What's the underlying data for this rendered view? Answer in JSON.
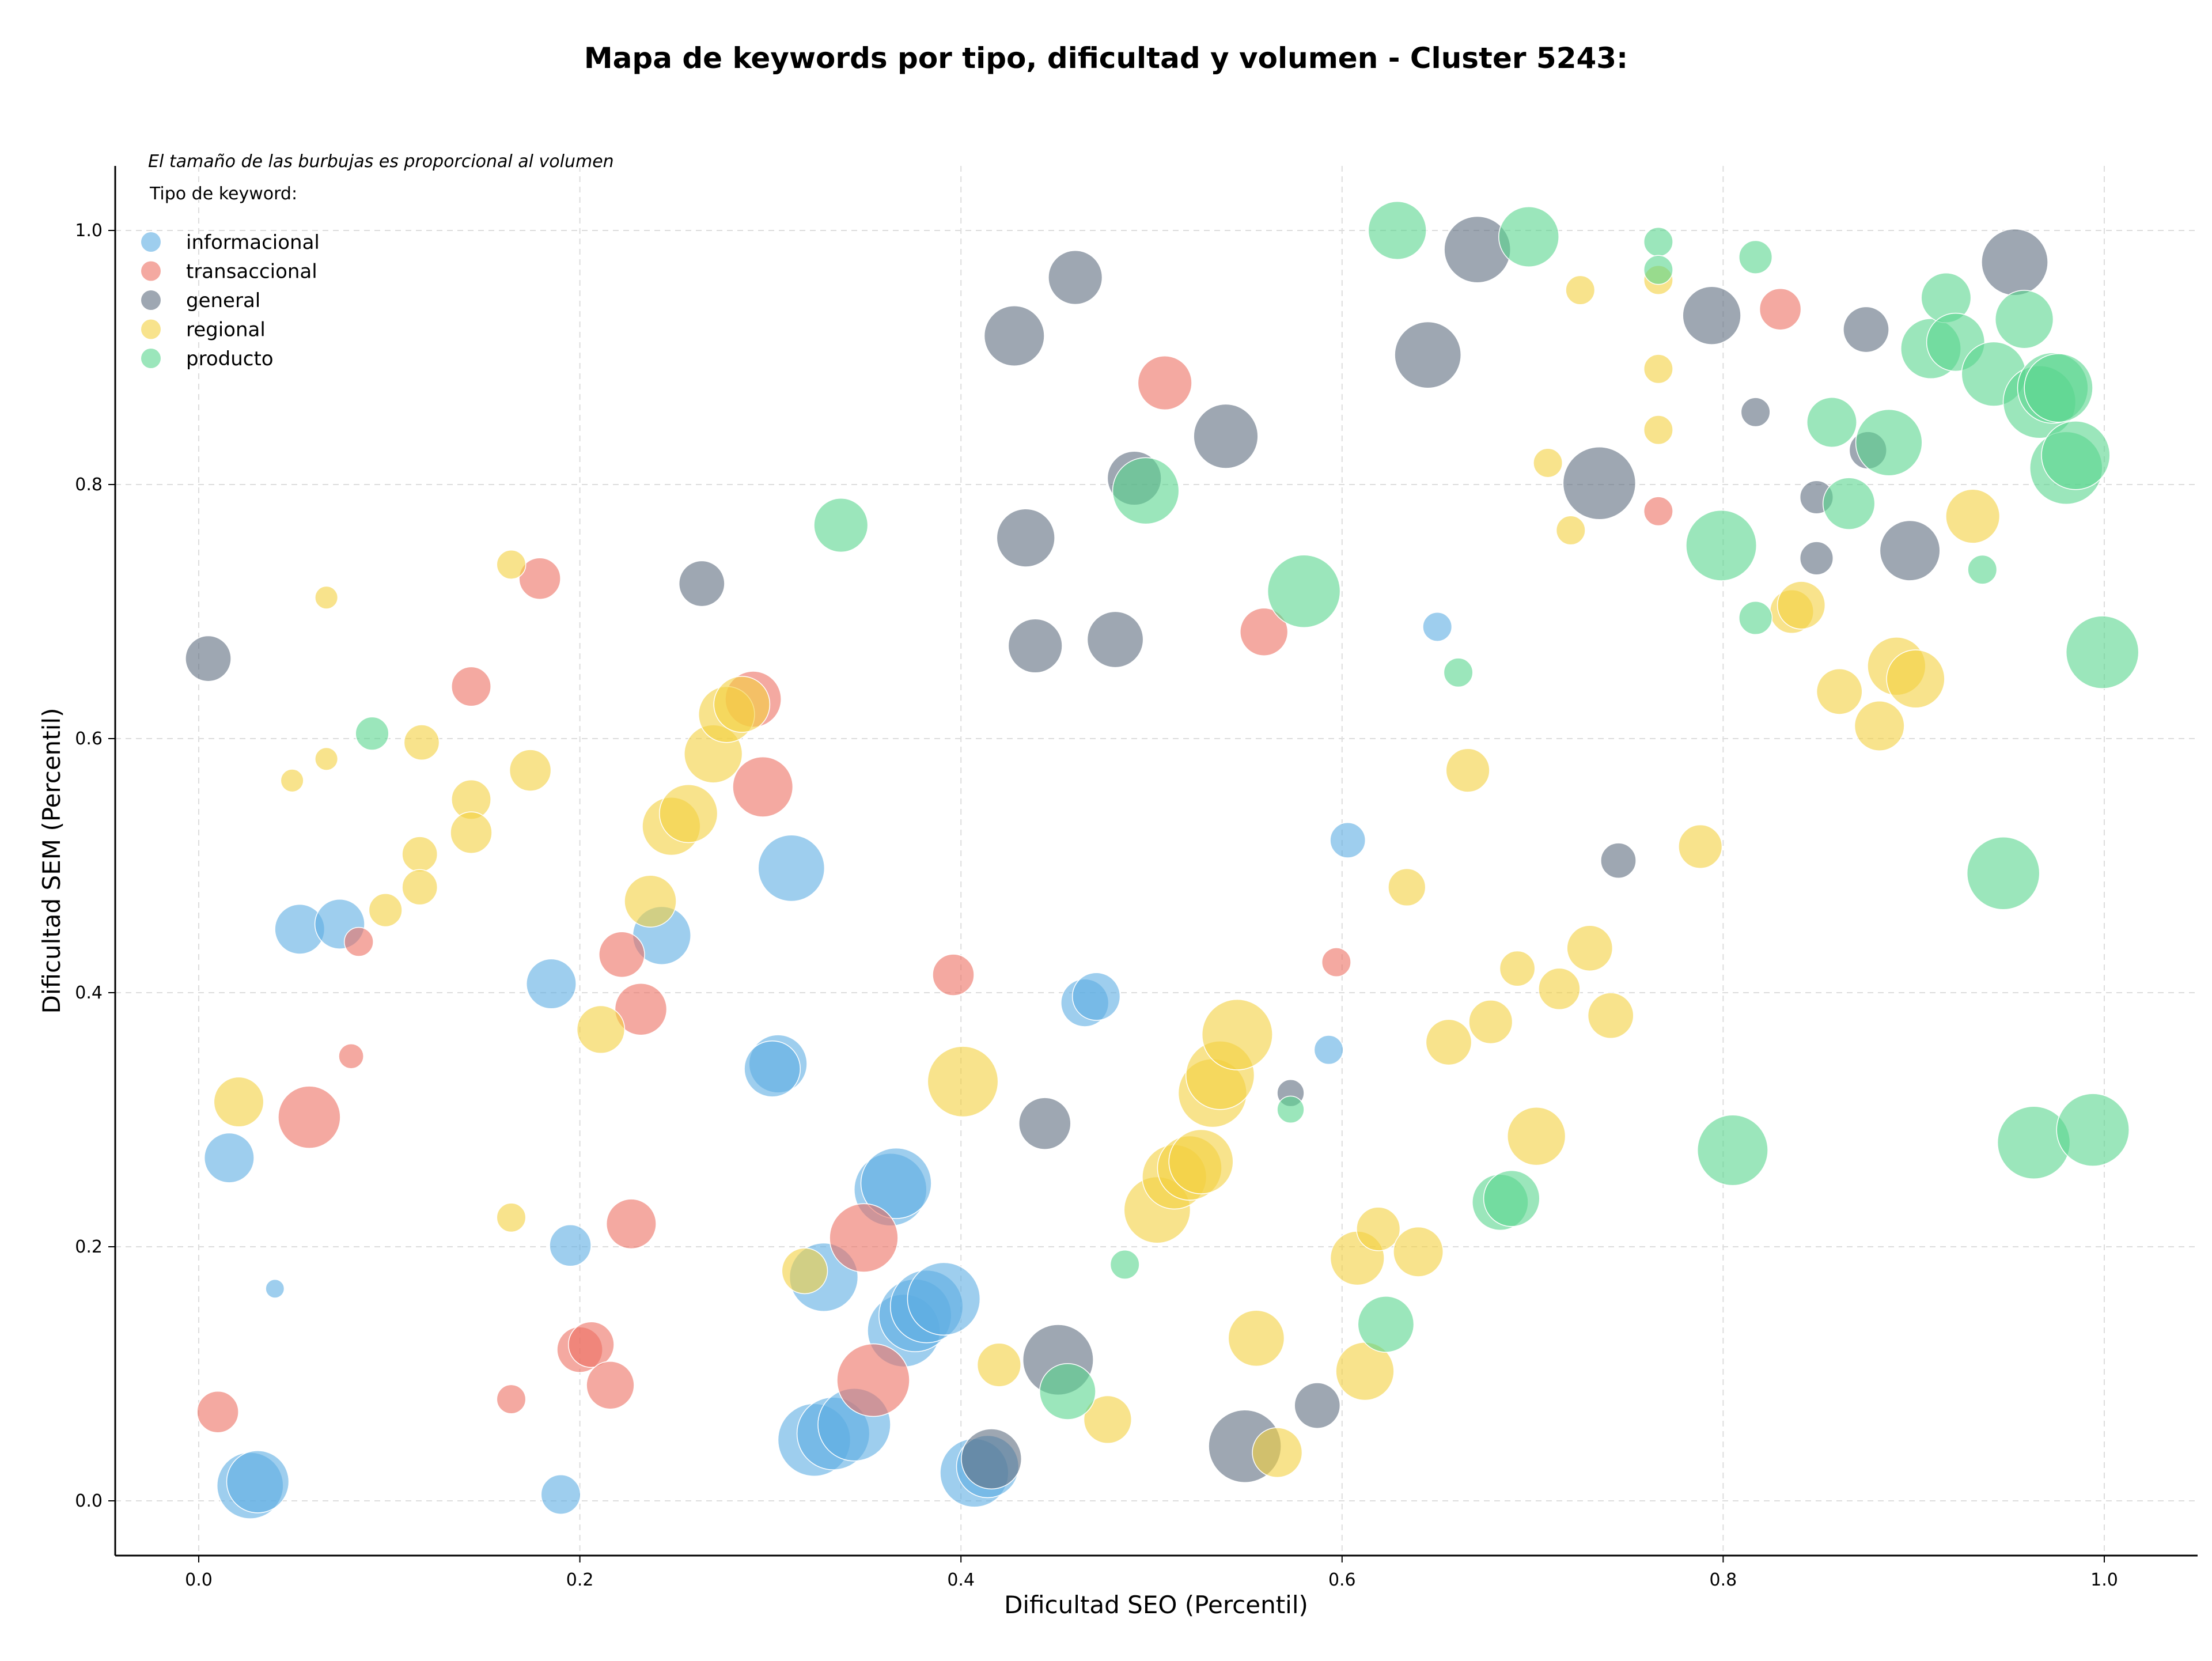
{
  "chart_data": {
    "type": "scatter",
    "title": "Mapa de keywords por tipo, dificultad y volumen - Cluster 5243:",
    "xlabel": "Dificultad SEO (Percentil)",
    "ylabel": "Dificultad SEM (Percentil)",
    "xlim": [
      -0.045,
      1.05
    ],
    "ylim": [
      -0.045,
      1.05
    ],
    "xticks": [
      0.0,
      0.2,
      0.4,
      0.6,
      0.8,
      1.0
    ],
    "yticks": [
      0.0,
      0.2,
      0.4,
      0.6,
      0.8,
      1.0
    ],
    "xtick_labels": [
      "0.0",
      "0.2",
      "0.4",
      "0.6",
      "0.8",
      "1.0"
    ],
    "ytick_labels": [
      "0.0",
      "0.2",
      "0.4",
      "0.6",
      "0.8",
      "1.0"
    ],
    "grid": true,
    "note": "El tamaño de las burbujas es proporcional al volumen",
    "legend_title": "Tipo de keyword:",
    "legend_position": "top-left",
    "series": [
      {
        "name": "informacional",
        "color": "#5dade2",
        "points": [
          [
            0.053,
            0.45,
            2.4
          ],
          [
            0.074,
            0.454,
            2.4
          ],
          [
            0.016,
            0.27,
            2.4
          ],
          [
            0.04,
            0.167,
            0.9
          ],
          [
            0.027,
            0.012,
            3.2
          ],
          [
            0.031,
            0.015,
            3.0
          ],
          [
            0.185,
            0.407,
            2.4
          ],
          [
            0.195,
            0.201,
            2.0
          ],
          [
            0.19,
            0.005,
            1.9
          ],
          [
            0.243,
            0.445,
            2.8
          ],
          [
            0.311,
            0.498,
            3.2
          ],
          [
            0.304,
            0.344,
            2.8
          ],
          [
            0.301,
            0.34,
            2.7
          ],
          [
            0.328,
            0.176,
            3.3
          ],
          [
            0.323,
            0.048,
            3.5
          ],
          [
            0.333,
            0.053,
            3.5
          ],
          [
            0.344,
            0.06,
            3.5
          ],
          [
            0.363,
            0.245,
            3.5
          ],
          [
            0.366,
            0.25,
            3.4
          ],
          [
            0.37,
            0.134,
            3.5
          ],
          [
            0.376,
            0.146,
            3.5
          ],
          [
            0.382,
            0.153,
            3.5
          ],
          [
            0.391,
            0.159,
            3.5
          ],
          [
            0.407,
            0.022,
            3.3
          ],
          [
            0.414,
            0.027,
            3.0
          ],
          [
            0.465,
            0.392,
            2.3
          ],
          [
            0.471,
            0.397,
            2.3
          ],
          [
            0.593,
            0.355,
            1.4
          ],
          [
            0.603,
            0.52,
            1.7
          ],
          [
            0.65,
            0.688,
            1.4
          ]
        ]
      },
      {
        "name": "transaccional",
        "color": "#ec7063",
        "points": [
          [
            0.179,
            0.726,
            2.0
          ],
          [
            0.143,
            0.641,
            1.9
          ],
          [
            0.058,
            0.302,
            3.0
          ],
          [
            0.084,
            0.44,
            1.4
          ],
          [
            0.08,
            0.35,
            1.2
          ],
          [
            0.01,
            0.07,
            2.0
          ],
          [
            0.164,
            0.08,
            1.4
          ],
          [
            0.222,
            0.43,
            2.2
          ],
          [
            0.232,
            0.387,
            2.5
          ],
          [
            0.227,
            0.218,
            2.4
          ],
          [
            0.2,
            0.119,
            2.2
          ],
          [
            0.206,
            0.123,
            2.2
          ],
          [
            0.216,
            0.091,
            2.3
          ],
          [
            0.291,
            0.631,
            2.7
          ],
          [
            0.296,
            0.562,
            2.9
          ],
          [
            0.349,
            0.207,
            3.3
          ],
          [
            0.354,
            0.095,
            3.5
          ],
          [
            0.396,
            0.414,
            2.0
          ],
          [
            0.507,
            0.88,
            2.6
          ],
          [
            0.559,
            0.684,
            2.3
          ],
          [
            0.597,
            0.424,
            1.4
          ],
          [
            0.766,
            0.779,
            1.4
          ],
          [
            0.83,
            0.938,
            2.0
          ]
        ]
      },
      {
        "name": "general",
        "color": "#5d6d7e",
        "points": [
          [
            0.005,
            0.663,
            2.2
          ],
          [
            0.264,
            0.722,
            2.2
          ],
          [
            0.428,
            0.917,
            2.9
          ],
          [
            0.46,
            0.963,
            2.6
          ],
          [
            0.434,
            0.758,
            2.8
          ],
          [
            0.439,
            0.673,
            2.6
          ],
          [
            0.444,
            0.297,
            2.5
          ],
          [
            0.451,
            0.111,
            3.4
          ],
          [
            0.416,
            0.033,
            2.9
          ],
          [
            0.481,
            0.678,
            2.7
          ],
          [
            0.491,
            0.805,
            2.6
          ],
          [
            0.539,
            0.838,
            3.1
          ],
          [
            0.549,
            0.043,
            3.5
          ],
          [
            0.573,
            0.321,
            1.3
          ],
          [
            0.587,
            0.075,
            2.2
          ],
          [
            0.645,
            0.902,
            3.2
          ],
          [
            0.671,
            0.985,
            3.2
          ],
          [
            0.735,
            0.801,
            3.5
          ],
          [
            0.745,
            0.504,
            1.7
          ],
          [
            0.794,
            0.933,
            2.8
          ],
          [
            0.817,
            0.857,
            1.4
          ],
          [
            0.849,
            0.79,
            1.6
          ],
          [
            0.849,
            0.742,
            1.6
          ],
          [
            0.875,
            0.922,
            2.2
          ],
          [
            0.876,
            0.827,
            1.8
          ],
          [
            0.898,
            0.748,
            2.9
          ],
          [
            0.953,
            0.975,
            3.2
          ]
        ]
      },
      {
        "name": "regional",
        "color": "#f4d03f",
        "points": [
          [
            0.067,
            0.711,
            1.1
          ],
          [
            0.049,
            0.567,
            1.1
          ],
          [
            0.067,
            0.584,
            1.1
          ],
          [
            0.098,
            0.465,
            1.6
          ],
          [
            0.117,
            0.597,
            1.7
          ],
          [
            0.116,
            0.509,
            1.7
          ],
          [
            0.116,
            0.483,
            1.7
          ],
          [
            0.143,
            0.552,
            1.9
          ],
          [
            0.143,
            0.526,
            2.0
          ],
          [
            0.164,
            0.737,
            1.4
          ],
          [
            0.174,
            0.575,
            2.0
          ],
          [
            0.164,
            0.223,
            1.4
          ],
          [
            0.021,
            0.314,
            2.4
          ],
          [
            0.211,
            0.371,
            2.3
          ],
          [
            0.237,
            0.472,
            2.5
          ],
          [
            0.248,
            0.531,
            2.8
          ],
          [
            0.257,
            0.541,
            2.8
          ],
          [
            0.27,
            0.588,
            2.8
          ],
          [
            0.277,
            0.619,
            2.7
          ],
          [
            0.285,
            0.627,
            2.7
          ],
          [
            0.318,
            0.181,
            2.2
          ],
          [
            0.401,
            0.33,
            3.4
          ],
          [
            0.42,
            0.107,
            2.1
          ],
          [
            0.477,
            0.064,
            2.3
          ],
          [
            0.503,
            0.229,
            3.2
          ],
          [
            0.512,
            0.255,
            3.1
          ],
          [
            0.52,
            0.262,
            3.1
          ],
          [
            0.526,
            0.267,
            3.1
          ],
          [
            0.532,
            0.321,
            3.3
          ],
          [
            0.536,
            0.335,
            3.3
          ],
          [
            0.545,
            0.367,
            3.4
          ],
          [
            0.555,
            0.128,
            2.7
          ],
          [
            0.566,
            0.038,
            2.4
          ],
          [
            0.608,
            0.191,
            2.6
          ],
          [
            0.612,
            0.102,
            2.8
          ],
          [
            0.619,
            0.214,
            2.1
          ],
          [
            0.634,
            0.483,
            1.8
          ],
          [
            0.64,
            0.196,
            2.4
          ],
          [
            0.656,
            0.361,
            2.2
          ],
          [
            0.666,
            0.575,
            2.1
          ],
          [
            0.678,
            0.377,
            2.1
          ],
          [
            0.692,
            0.419,
            1.7
          ],
          [
            0.702,
            0.287,
            2.8
          ],
          [
            0.708,
            0.817,
            1.4
          ],
          [
            0.714,
            0.403,
            2.0
          ],
          [
            0.72,
            0.764,
            1.4
          ],
          [
            0.725,
            0.953,
            1.4
          ],
          [
            0.73,
            0.435,
            2.2
          ],
          [
            0.741,
            0.382,
            2.2
          ],
          [
            0.766,
            0.961,
            1.4
          ],
          [
            0.766,
            0.891,
            1.4
          ],
          [
            0.766,
            0.843,
            1.4
          ],
          [
            0.788,
            0.515,
            2.1
          ],
          [
            0.836,
            0.7,
            2.1
          ],
          [
            0.841,
            0.705,
            2.3
          ],
          [
            0.861,
            0.637,
            2.2
          ],
          [
            0.882,
            0.61,
            2.4
          ],
          [
            0.891,
            0.657,
            2.8
          ],
          [
            0.901,
            0.647,
            2.8
          ],
          [
            0.931,
            0.775,
            2.6
          ]
        ]
      },
      {
        "name": "producto",
        "color": "#58d68d",
        "points": [
          [
            0.091,
            0.604,
            1.6
          ],
          [
            0.337,
            0.768,
            2.6
          ],
          [
            0.456,
            0.086,
            2.7
          ],
          [
            0.486,
            0.186,
            1.4
          ],
          [
            0.497,
            0.795,
            3.2
          ],
          [
            0.58,
            0.716,
            3.5
          ],
          [
            0.573,
            0.308,
            1.3
          ],
          [
            0.623,
            0.139,
            2.7
          ],
          [
            0.629,
            1.0,
            2.8
          ],
          [
            0.661,
            0.652,
            1.4
          ],
          [
            0.683,
            0.235,
            2.7
          ],
          [
            0.689,
            0.238,
            2.7
          ],
          [
            0.698,
            0.995,
            2.9
          ],
          [
            0.766,
            0.991,
            1.4
          ],
          [
            0.766,
            0.969,
            1.4
          ],
          [
            0.799,
            0.752,
            3.4
          ],
          [
            0.805,
            0.276,
            3.4
          ],
          [
            0.817,
            0.979,
            1.6
          ],
          [
            0.817,
            0.695,
            1.6
          ],
          [
            0.857,
            0.849,
            2.4
          ],
          [
            0.866,
            0.785,
            2.5
          ],
          [
            0.887,
            0.833,
            3.2
          ],
          [
            0.909,
            0.907,
            2.9
          ],
          [
            0.917,
            0.947,
            2.4
          ],
          [
            0.922,
            0.912,
            2.8
          ],
          [
            0.936,
            0.733,
            1.4
          ],
          [
            0.942,
            0.887,
            3.1
          ],
          [
            0.947,
            0.494,
            3.5
          ],
          [
            0.958,
            0.93,
            2.8
          ],
          [
            0.963,
            0.282,
            3.5
          ],
          [
            0.966,
            0.865,
            3.5
          ],
          [
            0.973,
            0.876,
            3.4
          ],
          [
            0.976,
            0.876,
            3.3
          ],
          [
            0.98,
            0.813,
            3.5
          ],
          [
            0.985,
            0.823,
            3.3
          ],
          [
            0.994,
            0.292,
            3.5
          ],
          [
            0.999,
            0.668,
            3.5
          ]
        ]
      }
    ]
  }
}
